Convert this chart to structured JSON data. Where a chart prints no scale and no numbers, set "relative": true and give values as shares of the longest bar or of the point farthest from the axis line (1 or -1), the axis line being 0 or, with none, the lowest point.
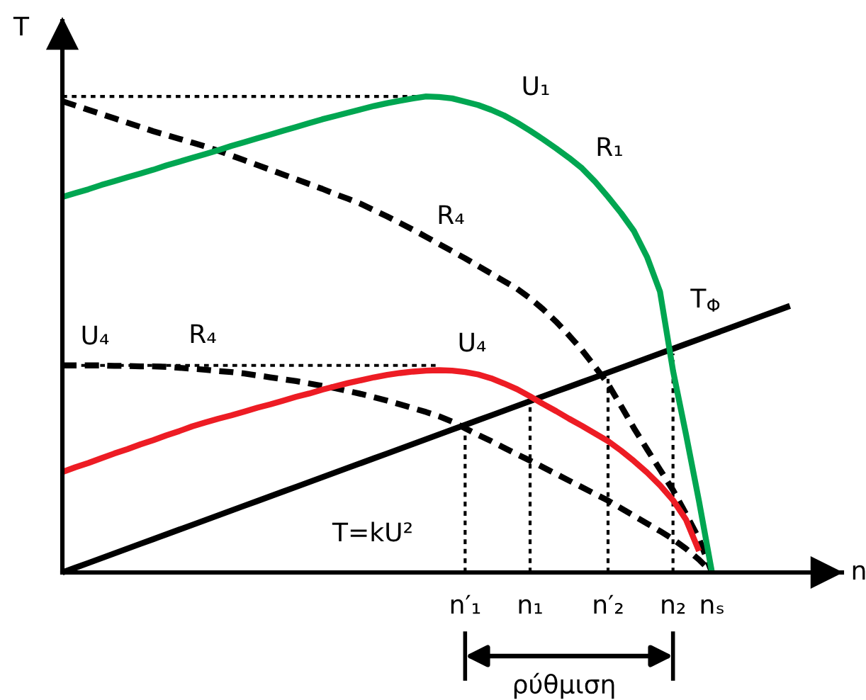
{
  "chart_data": {
    "type": "line",
    "relative": true,
    "tick_labels": "x",
    "marker": "none",
    "xlabel": "n",
    "ylabel": "T",
    "categories": [
      null,
      null,
      null,
      null,
      null,
      null,
      null,
      null,
      null,
      null,
      null,
      null,
      null,
      null,
      null,
      null,
      null,
      null,
      null,
      null,
      null,
      null,
      null,
      null,
      null,
      null,
      null,
      null,
      null,
      null,
      null,
      "n′₁",
      null,
      null,
      null,
      null,
      "n₁",
      null,
      null,
      null,
      null,
      null,
      "n′₂",
      null,
      null,
      null,
      null,
      "n₂",
      null,
      null,
      "nₛ",
      null,
      null,
      null,
      null,
      null,
      null
    ],
    "series": [
      {
        "color": "#000000",
        "line_style": "dotted",
        "values": [
          1,
          1,
          1,
          1,
          1,
          1,
          1,
          1,
          1,
          1,
          1,
          1,
          1,
          1,
          1,
          1,
          1,
          1,
          1,
          1,
          1,
          1,
          1,
          1,
          1,
          1,
          1,
          1,
          1,
          null,
          null,
          null,
          null,
          null,
          null,
          null,
          null,
          null,
          null,
          null,
          null,
          null,
          null,
          null,
          null,
          null,
          null,
          null,
          null,
          null,
          null,
          null,
          null,
          null,
          null,
          null,
          null
        ]
      },
      {
        "color": "#000000",
        "line_style": "dotted",
        "values": [
          0.435,
          0.435,
          0.435,
          0.435,
          0.435,
          0.435,
          0.435,
          0.435,
          0.435,
          0.435,
          0.435,
          0.435,
          0.435,
          0.435,
          0.435,
          0.435,
          0.435,
          0.435,
          0.435,
          0.435,
          0.435,
          0.435,
          0.435,
          0.435,
          0.435,
          0.435,
          0.435,
          0.435,
          0.435,
          0.435,
          null,
          null,
          null,
          null,
          null,
          null,
          null,
          null,
          null,
          null,
          null,
          null,
          null,
          null,
          null,
          null,
          null,
          null,
          null,
          null,
          null,
          null,
          null,
          null,
          null,
          null,
          null
        ]
      },
      {
        "color": "#000000",
        "line_style": "dotted",
        "x": [
          "n′₁",
          "n′₁"
        ],
        "values": [
          0,
          0.3
        ]
      },
      {
        "color": "#000000",
        "line_style": "dotted",
        "x": [
          "n₁",
          "n₁"
        ],
        "values": [
          0,
          0.36
        ]
      },
      {
        "color": "#000000",
        "line_style": "dotted",
        "x": [
          "n′₂",
          "n′₂"
        ],
        "values": [
          0,
          0.42
        ]
      },
      {
        "color": "#000000",
        "line_style": "dotted",
        "x": [
          "n₂",
          "n₂"
        ],
        "values": [
          0,
          0.46
        ]
      },
      {
        "color": "#000000",
        "line_style": "dashed",
        "values": [
          0.99,
          0.981,
          0.972,
          0.963,
          0.954,
          0.945,
          0.936,
          0.927,
          0.919,
          0.911,
          0.903,
          0.895,
          0.886,
          0.876,
          0.866,
          0.856,
          0.846,
          0.836,
          0.826,
          0.816,
          0.806,
          0.795,
          0.785,
          0.774,
          0.761,
          0.748,
          0.734,
          0.72,
          0.705,
          0.69,
          0.675,
          0.66,
          0.644,
          0.628,
          0.612,
          0.596,
          0.576,
          0.553,
          0.527,
          0.498,
          0.467,
          0.432,
          0.396,
          0.35,
          0.303,
          0.259,
          0.216,
          0.173,
          0.123,
          0.071,
          0.0,
          null,
          null,
          null,
          null,
          null,
          null
        ]
      },
      {
        "color": "#000000",
        "line_style": "dashed",
        "values": [
          0.435,
          0.435,
          0.435,
          0.435,
          0.434,
          0.434,
          0.433,
          0.433,
          0.432,
          0.43,
          0.428,
          0.426,
          0.423,
          0.421,
          0.418,
          0.414,
          0.41,
          0.406,
          0.402,
          0.397,
          0.392,
          0.387,
          0.381,
          0.375,
          0.368,
          0.361,
          0.353,
          0.345,
          0.337,
          0.328,
          0.317,
          0.303,
          0.289,
          0.276,
          0.262,
          0.248,
          0.235,
          0.221,
          0.207,
          0.193,
          0.179,
          0.165,
          0.151,
          0.135,
          0.119,
          0.103,
          0.087,
          0.07,
          0.05,
          0.027,
          0.0,
          null,
          null,
          null,
          null,
          null,
          null
        ]
      },
      {
        "color": "#000000",
        "line_style": "solid",
        "values": [
          0.0,
          0.01,
          0.02,
          0.03,
          0.04,
          0.05,
          0.06,
          0.07,
          0.08,
          0.09,
          0.1,
          0.11,
          0.12,
          0.13,
          0.14,
          0.15,
          0.16,
          0.17,
          0.18,
          0.19,
          0.2,
          0.21,
          0.22,
          0.23,
          0.24,
          0.25,
          0.26,
          0.27,
          0.28,
          0.29,
          0.3,
          0.31,
          0.32,
          0.33,
          0.34,
          0.35,
          0.36,
          0.37,
          0.38,
          0.39,
          0.4,
          0.41,
          0.42,
          0.43,
          0.44,
          0.45,
          0.46,
          0.47,
          0.48,
          0.49,
          0.5,
          0.51,
          0.52,
          0.53,
          0.54,
          0.55,
          0.56
        ]
      },
      {
        "color": "#ed1c24",
        "line_style": "solid",
        "values": [
          0.211,
          0.221,
          0.23,
          0.24,
          0.25,
          0.259,
          0.269,
          0.278,
          0.288,
          0.297,
          0.307,
          0.315,
          0.323,
          0.33,
          0.338,
          0.346,
          0.353,
          0.361,
          0.369,
          0.376,
          0.384,
          0.391,
          0.398,
          0.404,
          0.41,
          0.415,
          0.419,
          0.422,
          0.424,
          0.425,
          0.424,
          0.421,
          0.416,
          0.408,
          0.397,
          0.385,
          0.37,
          0.354,
          0.339,
          0.323,
          0.308,
          0.292,
          0.276,
          0.256,
          0.234,
          0.21,
          0.183,
          0.152,
          0.111,
          0.045,
          null,
          null,
          null,
          null,
          null,
          null,
          null
        ]
      },
      {
        "color": "#00a651",
        "line_style": "solid",
        "values": [
          0.789,
          0.797,
          0.805,
          0.814,
          0.822,
          0.83,
          0.838,
          0.846,
          0.855,
          0.863,
          0.871,
          0.879,
          0.887,
          0.896,
          0.904,
          0.912,
          0.92,
          0.928,
          0.936,
          0.944,
          0.952,
          0.959,
          0.966,
          0.973,
          0.98,
          0.986,
          0.991,
          0.996,
          1.0,
          0.999,
          0.996,
          0.989,
          0.982,
          0.972,
          0.96,
          0.945,
          0.928,
          0.91,
          0.891,
          0.871,
          0.849,
          0.821,
          0.789,
          0.755,
          0.717,
          0.663,
          0.59,
          0.424,
          0.29,
          0.15,
          0.0,
          null,
          null,
          null,
          null,
          null,
          null
        ]
      }
    ],
    "annotations": [
      "U₁",
      "R₁",
      "R₄",
      "T$_{Φ}$",
      "U₄",
      "R₄",
      "U₄",
      "T=kU²",
      "ρύθμιση"
    ]
  }
}
